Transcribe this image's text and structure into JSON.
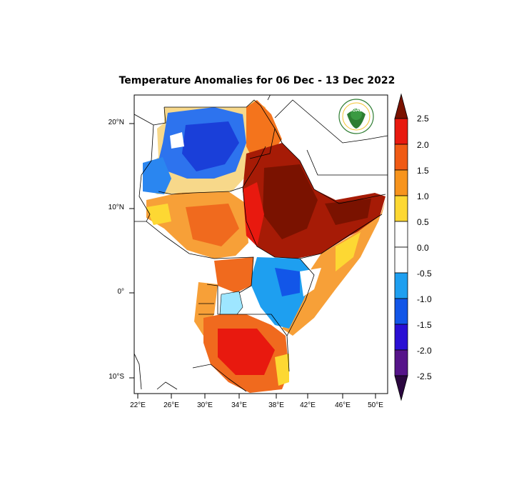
{
  "title": "Temperature Anomalies for 06 Dec - 13 Dec 2022",
  "logo": {
    "text": "IGAD",
    "icon": "igad-logo"
  },
  "lat_labels": [
    "20°N",
    "10°N",
    "0°",
    "10°S"
  ],
  "lon_labels": [
    "22°E",
    "26°E",
    "30°E",
    "34°E",
    "38°E",
    "42°E",
    "46°E",
    "50°E"
  ],
  "colorbar": {
    "labels": [
      "2.5",
      "2.0",
      "1.5",
      "1.0",
      "0.5",
      "0.0",
      "-0.5",
      "-1.0",
      "-1.5",
      "-2.0",
      "-2.5"
    ],
    "colors": [
      "#7a1200",
      "#e8190f",
      "#f05a14",
      "#f7941d",
      "#fdd833",
      "#ffffff",
      "#ffffff",
      "#1e9ff0",
      "#1256e8",
      "#2a0fd4",
      "#56148a",
      "#2b0740"
    ]
  }
}
